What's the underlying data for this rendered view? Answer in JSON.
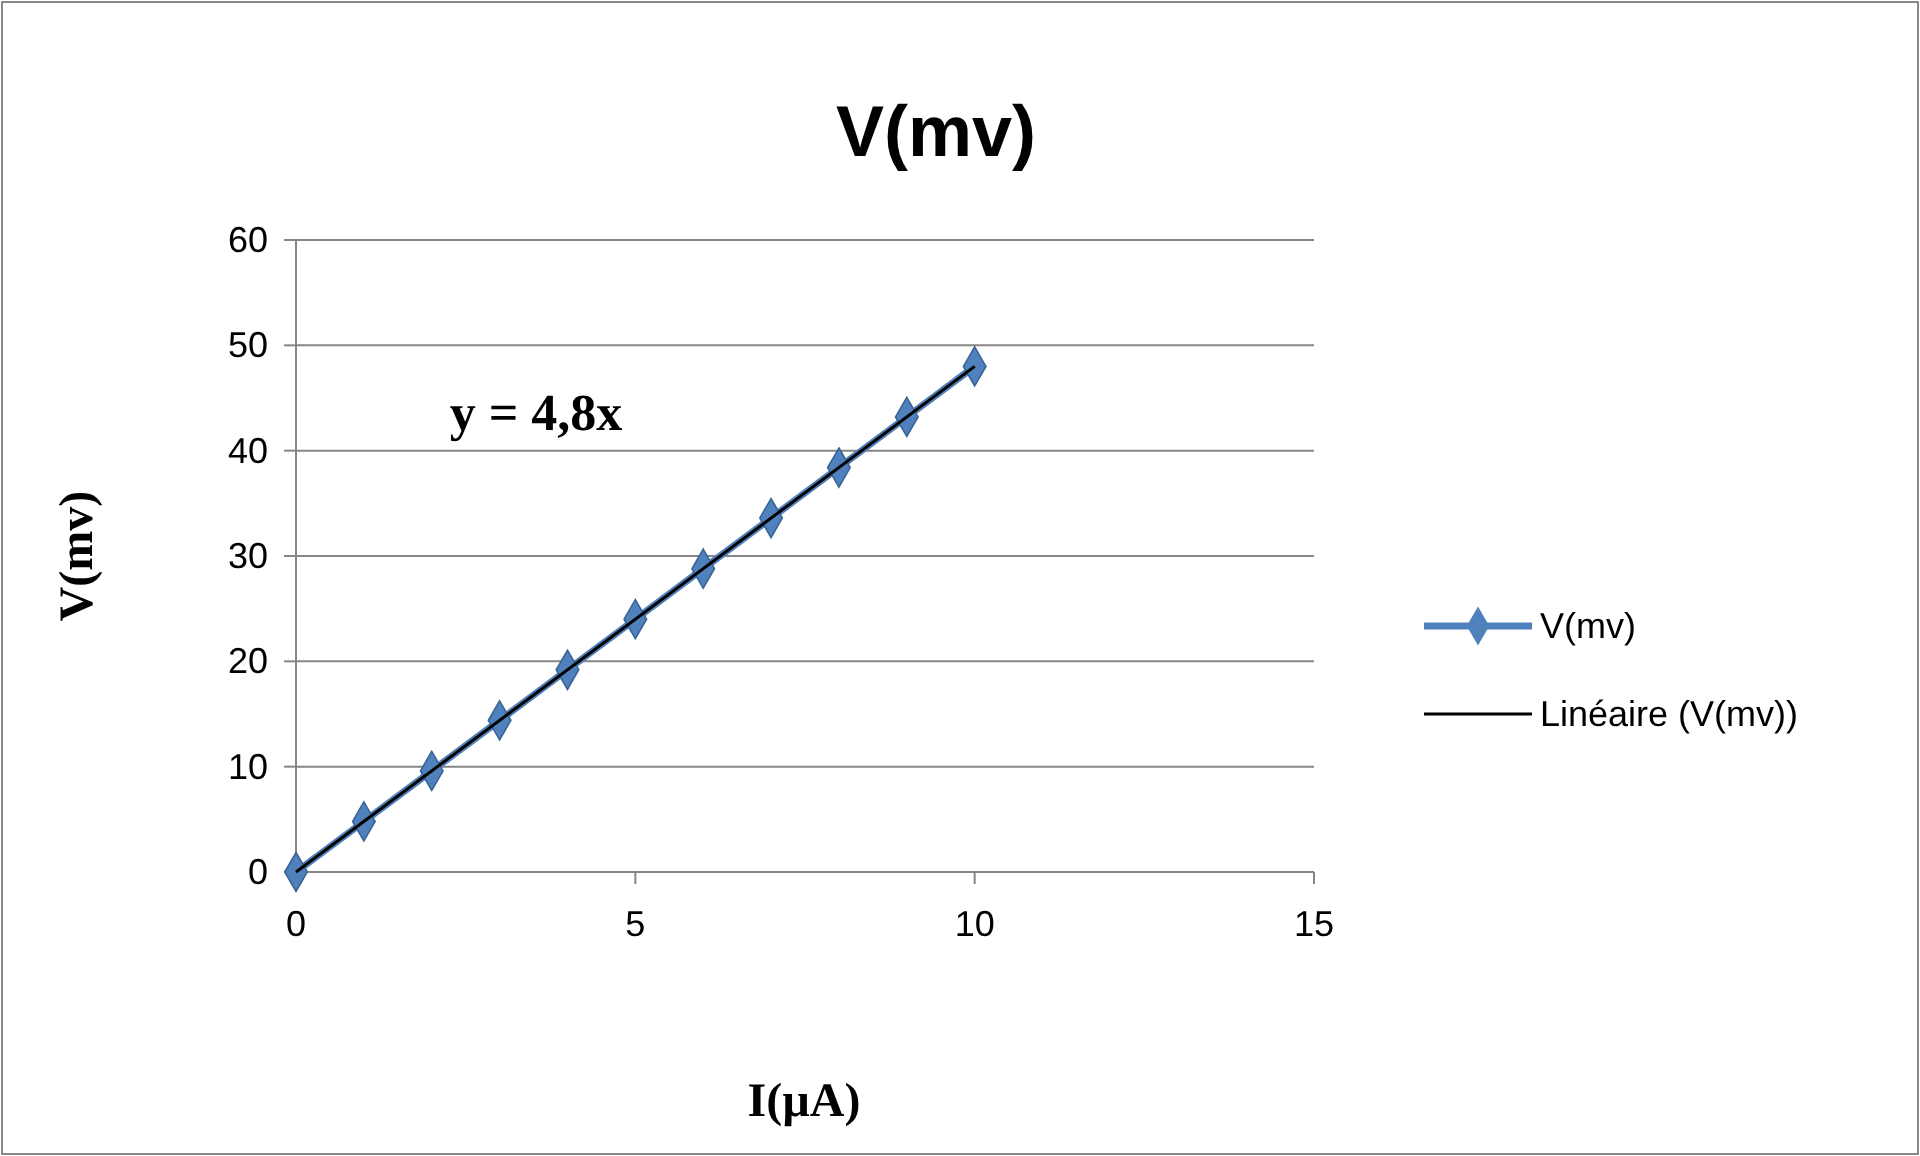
{
  "chart_data": {
    "type": "line",
    "title": "V(mv)",
    "xlabel": "I(µA)",
    "ylabel": "V(mv)",
    "annotations": [
      "y = 4,8x"
    ],
    "x": [
      0,
      1,
      2,
      3,
      4,
      5,
      6,
      7,
      8,
      9,
      10
    ],
    "series": [
      {
        "name": "V(mv)",
        "color": "#4f81bd",
        "marker": "diamond",
        "values": [
          0,
          4.8,
          9.6,
          14.4,
          19.2,
          24,
          28.8,
          33.6,
          38.4,
          43.2,
          48
        ]
      },
      {
        "name": "Linéaire (V(mv))",
        "color": "#000000",
        "marker": "none",
        "x": [
          0,
          10
        ],
        "values": [
          0,
          48
        ]
      }
    ],
    "xlim": [
      0,
      15
    ],
    "xticks": [
      0,
      5,
      10,
      15
    ],
    "ylim": [
      0,
      60
    ],
    "yticks": [
      0,
      10,
      20,
      30,
      40,
      50,
      60
    ],
    "grid": "y",
    "legend": "right"
  }
}
